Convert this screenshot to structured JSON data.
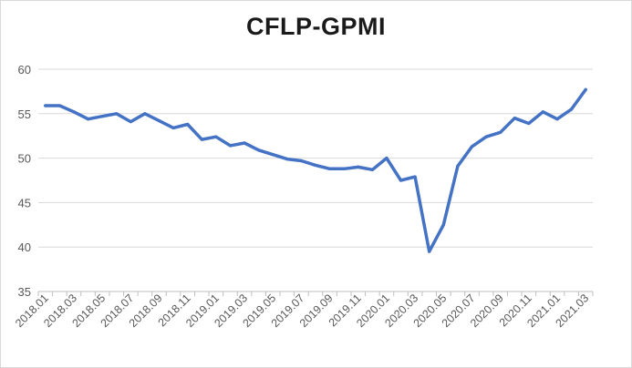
{
  "chart_data": {
    "type": "line",
    "title": "CFLP-GPMI",
    "xlabel": "",
    "ylabel": "",
    "ylim": [
      35,
      60
    ],
    "yticks": [
      35,
      40,
      45,
      50,
      55,
      60
    ],
    "grid": true,
    "legend": "none",
    "line_color": "#4472c4",
    "x": [
      "2018.01",
      "2018.02",
      "2018.03",
      "2018.04",
      "2018.05",
      "2018.06",
      "2018.07",
      "2018.08",
      "2018.09",
      "2018.10",
      "2018.11",
      "2018.12",
      "2019.01",
      "2019.02",
      "2019.03",
      "2019.04",
      "2019.05",
      "2019.06",
      "2019.07",
      "2019.08",
      "2019.09",
      "2019.10",
      "2019.11",
      "2019.12",
      "2020.01",
      "2020.02",
      "2020.03",
      "2020.04",
      "2020.05",
      "2020.06",
      "2020.07",
      "2020.08",
      "2020.09",
      "2020.10",
      "2020.11",
      "2020.12",
      "2021.01",
      "2021.02",
      "2021.03"
    ],
    "x_tick_labels": [
      "2018.01",
      "2018.03",
      "2018.05",
      "2018.07",
      "2018.09",
      "2018.11",
      "2019.01",
      "2019.03",
      "2019.05",
      "2019.07",
      "2019.09",
      "2019.11",
      "2020.01",
      "2020.03",
      "2020.05",
      "2020.07",
      "2020.09",
      "2020.11",
      "2021.01",
      "2021.03"
    ],
    "series": [
      {
        "values": [
          55.9,
          55.9,
          55.2,
          54.4,
          54.7,
          55.0,
          54.1,
          55.0,
          54.2,
          53.4,
          53.8,
          52.1,
          52.4,
          51.4,
          51.7,
          50.9,
          50.4,
          49.9,
          49.7,
          49.2,
          48.8,
          48.8,
          49.0,
          48.7,
          50.0,
          47.5,
          47.9,
          39.5,
          42.5,
          49.1,
          51.3,
          52.4,
          52.9,
          54.5,
          53.9,
          55.2,
          54.4,
          55.5,
          57.7
        ]
      }
    ]
  }
}
